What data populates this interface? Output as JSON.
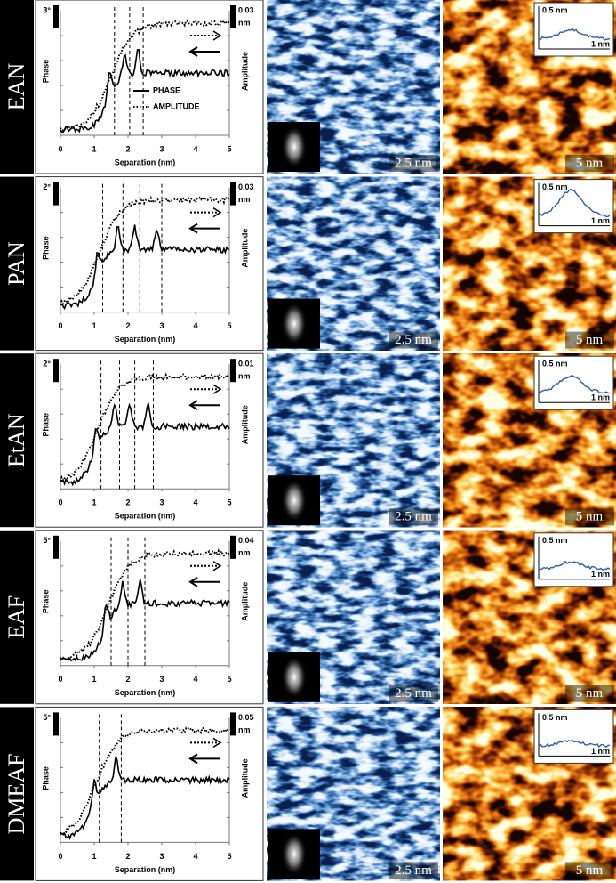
{
  "axis": {
    "y_left": "Phase",
    "y_right": "Amplitude",
    "x_label": "Separation (nm)",
    "xlim": [
      0,
      5
    ],
    "xticks": [
      0,
      1,
      2,
      3,
      4,
      5
    ]
  },
  "legend": [
    "PHASE",
    "AMPLITUDE"
  ],
  "panels": [
    {
      "label": "EAN",
      "phase_scale": "3°",
      "amp_scale": "0.03",
      "amp_unit": "nm",
      "dashes": [
        1.6,
        2.05,
        2.45
      ],
      "afm_scale": "2.5 nm",
      "topo_scale": "5 nm",
      "inset_height": "0.5 nm",
      "inset_length": "1 nm"
    },
    {
      "label": "PAN",
      "phase_scale": "2°",
      "amp_scale": "0.03",
      "amp_unit": "nm",
      "dashes": [
        1.25,
        1.85,
        2.35,
        3.0
      ],
      "afm_scale": "2.5 nm",
      "topo_scale": "5 nm",
      "inset_height": "0.5 nm",
      "inset_length": "1 nm"
    },
    {
      "label": "EtAN",
      "phase_scale": "2°",
      "amp_scale": "0.01",
      "amp_unit": "nm",
      "dashes": [
        1.2,
        1.75,
        2.2,
        2.75
      ],
      "afm_scale": "2.5 nm",
      "topo_scale": "5 nm",
      "inset_height": "0.5 nm",
      "inset_length": "1 nm"
    },
    {
      "label": "EAF",
      "phase_scale": "5°",
      "amp_scale": "0.04",
      "amp_unit": "nm",
      "dashes": [
        1.5,
        2.0,
        2.5
      ],
      "afm_scale": "2.5 nm",
      "topo_scale": "5 nm",
      "inset_height": "0.5 nm",
      "inset_length": "1 nm"
    },
    {
      "label": "DMEAF",
      "phase_scale": "5°",
      "amp_scale": "0.05",
      "amp_unit": "nm",
      "dashes": [
        1.15,
        1.8
      ],
      "afm_scale": "2.5 nm",
      "topo_scale": "5 nm",
      "inset_height": "0.5 nm",
      "inset_length": "1 nm"
    }
  ]
}
